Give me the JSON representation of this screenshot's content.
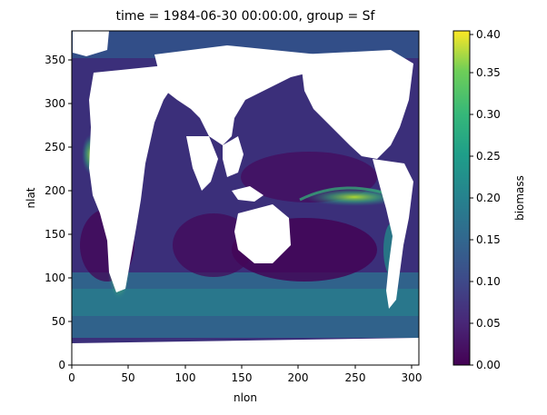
{
  "chart_data": {
    "type": "heatmap",
    "title": "time = 1984-06-30 00:00:00, group = Sf",
    "xlabel": "nlon",
    "ylabel": "nlat",
    "xlim": [
      0,
      320
    ],
    "ylim": [
      0,
      384
    ],
    "x_ticks": [
      "0",
      "50",
      "100",
      "150",
      "200",
      "250",
      "300"
    ],
    "y_ticks": [
      "0",
      "50",
      "100",
      "150",
      "200",
      "250",
      "300",
      "350"
    ],
    "colorbar": {
      "label": "biomass",
      "colormap": "viridis",
      "range": [
        0.0,
        0.4
      ],
      "ticks": [
        "0.00",
        "0.05",
        "0.10",
        "0.15",
        "0.20",
        "0.25",
        "0.30",
        "0.35",
        "0.40"
      ]
    },
    "masked_color": "#ffffff",
    "grid": false,
    "legend": "colorbar-right",
    "colors": {
      "low": "#440154",
      "mid": "#21918c",
      "high": "#fde725",
      "land": "#ffffff"
    }
  }
}
